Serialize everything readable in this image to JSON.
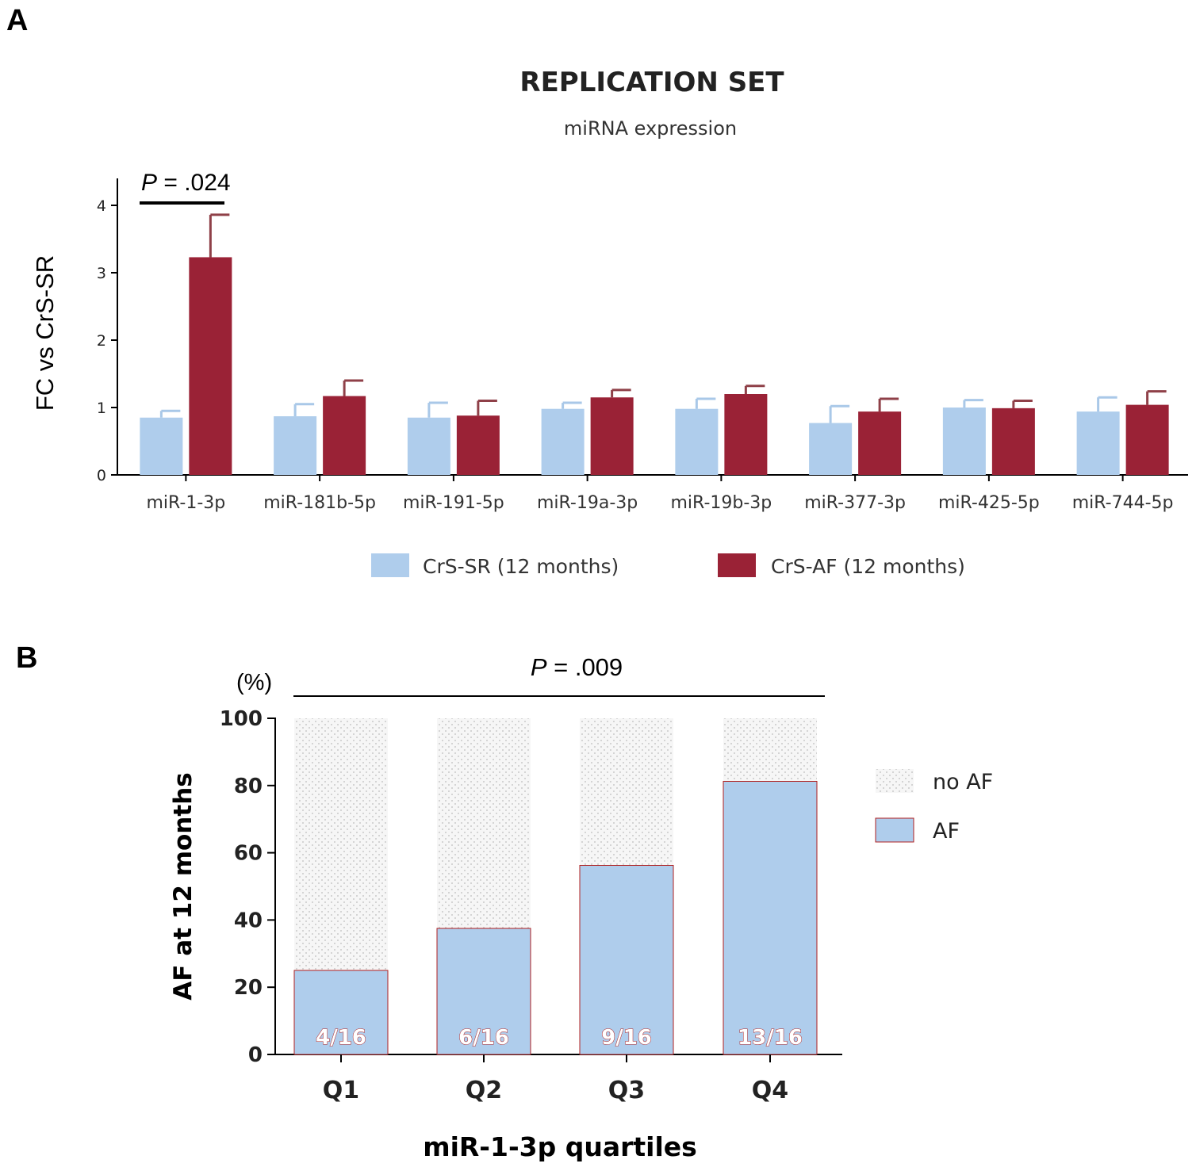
{
  "panels": {
    "a": {
      "label": "A"
    },
    "b": {
      "label": "B"
    }
  },
  "colors": {
    "sr": "#afcdec",
    "af": "#9a2236",
    "sr_err": "#a9c8e8",
    "af_err": "#8f4048",
    "axis": "#000000",
    "noaf_fill": "#f6f6f6",
    "noaf_dot": "#bdbdbd",
    "count_text": "#ffffff",
    "count_outline": "#b02020"
  },
  "chart_data": [
    {
      "type": "bar",
      "title": "REPLICATION SET",
      "subtitle": "miRNA expression",
      "xlabel": "",
      "ylabel": "FC vs CrS-SR",
      "ylim": [
        0,
        4.4
      ],
      "yticks": [
        0,
        1,
        2,
        3,
        4
      ],
      "grid": false,
      "legend_position": "bottom",
      "categories": [
        "miR-1-3p",
        "miR-181b-5p",
        "miR-191-5p",
        "miR-19a-3p",
        "miR-19b-3p",
        "miR-377-3p",
        "miR-425-5p",
        "miR-744-5p"
      ],
      "series": [
        {
          "name": "CrS-SR (12 months)",
          "values": [
            0.85,
            0.87,
            0.85,
            0.98,
            0.98,
            0.77,
            1.0,
            0.94
          ],
          "error_upper": [
            0.95,
            1.05,
            1.07,
            1.07,
            1.13,
            1.02,
            1.11,
            1.15
          ]
        },
        {
          "name": "CrS-AF (12 months)",
          "values": [
            3.23,
            1.17,
            0.88,
            1.15,
            1.2,
            0.94,
            0.99,
            1.04
          ],
          "error_upper": [
            3.86,
            1.4,
            1.1,
            1.26,
            1.32,
            1.13,
            1.1,
            1.24
          ]
        }
      ],
      "annotations": [
        {
          "type": "p_value",
          "p_italic": "P",
          "text": " = .024",
          "span_categories": [
            0,
            0
          ]
        }
      ]
    },
    {
      "type": "bar",
      "stacked": true,
      "title": "",
      "xlabel": "miR-1-3p quartiles",
      "ylabel": "AF at 12 months",
      "yunit_label": "(%)",
      "ylim": [
        0,
        100
      ],
      "yticks": [
        0,
        20,
        40,
        60,
        80,
        100
      ],
      "grid": false,
      "legend_position": "right",
      "categories": [
        "Q1",
        "Q2",
        "Q3",
        "Q4"
      ],
      "series": [
        {
          "name": "AF",
          "values": [
            25,
            37.5,
            56.25,
            81.25
          ]
        },
        {
          "name": "no AF",
          "values": [
            75,
            62.5,
            43.75,
            18.75
          ]
        }
      ],
      "bar_labels": [
        "4/16",
        "6/16",
        "9/16",
        "13/16"
      ],
      "legend_order": [
        "no AF",
        "AF"
      ],
      "annotations": [
        {
          "type": "p_value",
          "p_italic": "P",
          "text": " = .009",
          "span_categories": [
            0,
            3
          ]
        }
      ]
    }
  ]
}
